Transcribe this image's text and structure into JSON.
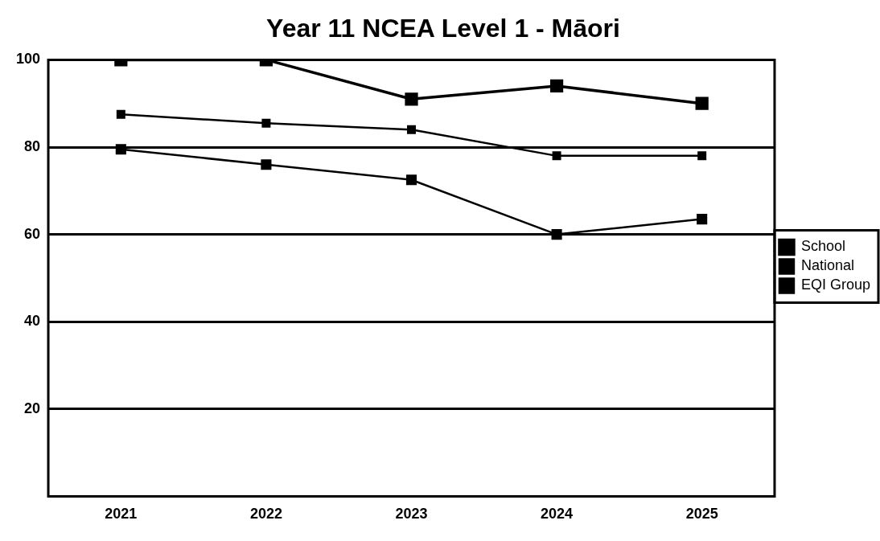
{
  "chart_data": {
    "type": "line",
    "title": "Year 11 NCEA Level 1 - Māori",
    "categories": [
      "2021",
      "2022",
      "2023",
      "2024",
      "2025"
    ],
    "series": [
      {
        "name": "School",
        "color": "#000000",
        "values": [
          100,
          100,
          91,
          94,
          90
        ]
      },
      {
        "name": "National",
        "color": "#000000",
        "values": [
          87.5,
          85.5,
          84,
          78,
          78
        ]
      },
      {
        "name": "EQI Group",
        "color": "#000000",
        "values": [
          79.5,
          76,
          72.5,
          60,
          63.5
        ]
      }
    ],
    "ylim": [
      0,
      100
    ],
    "yticks": [
      20,
      40,
      60,
      80,
      100
    ],
    "grid": "y",
    "legend": "right",
    "marker": "square",
    "line_style": "solid"
  }
}
